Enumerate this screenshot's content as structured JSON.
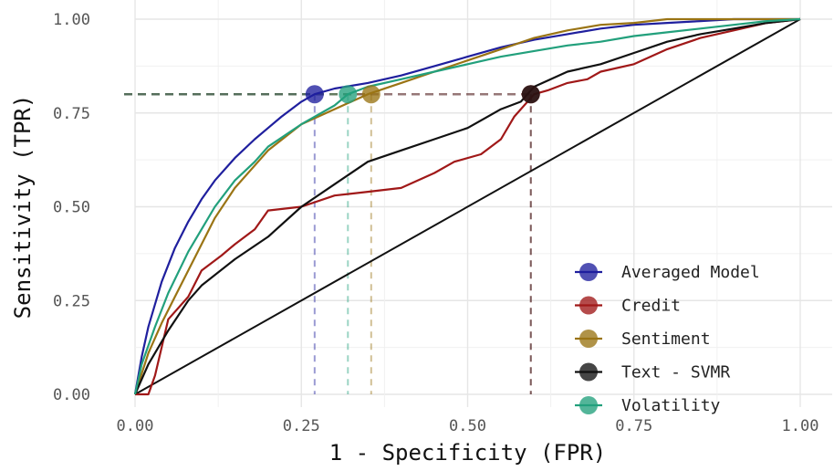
{
  "chart_data": {
    "type": "line",
    "title": "",
    "xlabel": "1 - Specificity (FPR)",
    "ylabel": "Sensitivity (TPR)",
    "xlim": [
      0,
      1
    ],
    "ylim": [
      0,
      1
    ],
    "x_ticks": [
      "0.00",
      "0.25",
      "0.50",
      "0.75",
      "1.00"
    ],
    "y_ticks": [
      "0.00",
      "0.25",
      "0.50",
      "0.75",
      "1.00"
    ],
    "grid": true,
    "legend_position": "bottom-right",
    "reference_line": {
      "x": [
        0,
        1
      ],
      "y": [
        0,
        1
      ],
      "color": "#111111"
    },
    "threshold_tpr": 0.8,
    "series": [
      {
        "name": "Averaged Model",
        "color": "#1f1f9e",
        "x": [
          0,
          0.01,
          0.02,
          0.04,
          0.06,
          0.08,
          0.1,
          0.12,
          0.15,
          0.18,
          0.2,
          0.22,
          0.25,
          0.27,
          0.3,
          0.35,
          0.4,
          0.45,
          0.5,
          0.55,
          0.6,
          0.65,
          0.7,
          0.75,
          0.8,
          0.85,
          0.9,
          0.95,
          1.0
        ],
        "y": [
          0,
          0.1,
          0.18,
          0.3,
          0.39,
          0.46,
          0.52,
          0.57,
          0.63,
          0.68,
          0.71,
          0.74,
          0.78,
          0.8,
          0.815,
          0.83,
          0.85,
          0.875,
          0.9,
          0.925,
          0.945,
          0.96,
          0.975,
          0.985,
          0.99,
          0.995,
          1.0,
          1.0,
          1.0
        ],
        "op_point": {
          "x": 0.27,
          "y": 0.8
        }
      },
      {
        "name": "Credit",
        "color": "#a01818",
        "x": [
          0,
          0.02,
          0.03,
          0.05,
          0.08,
          0.1,
          0.13,
          0.15,
          0.18,
          0.2,
          0.25,
          0.3,
          0.35,
          0.4,
          0.45,
          0.48,
          0.52,
          0.55,
          0.57,
          0.6,
          0.62,
          0.65,
          0.68,
          0.7,
          0.75,
          0.8,
          0.85,
          0.9,
          0.95,
          1.0
        ],
        "y": [
          0,
          0,
          0.05,
          0.2,
          0.26,
          0.33,
          0.37,
          0.4,
          0.44,
          0.49,
          0.5,
          0.53,
          0.54,
          0.55,
          0.59,
          0.62,
          0.64,
          0.68,
          0.74,
          0.8,
          0.81,
          0.83,
          0.84,
          0.86,
          0.88,
          0.92,
          0.95,
          0.97,
          0.99,
          1.0
        ],
        "op_point": {
          "x": 0.595,
          "y": 0.8
        }
      },
      {
        "name": "Sentiment",
        "color": "#9a7414",
        "x": [
          0,
          0.02,
          0.04,
          0.06,
          0.08,
          0.1,
          0.12,
          0.15,
          0.18,
          0.2,
          0.25,
          0.3,
          0.35,
          0.4,
          0.45,
          0.5,
          0.55,
          0.6,
          0.65,
          0.7,
          0.75,
          0.8,
          0.85,
          0.9,
          1.0
        ],
        "y": [
          0,
          0.11,
          0.19,
          0.26,
          0.33,
          0.4,
          0.47,
          0.55,
          0.61,
          0.65,
          0.72,
          0.76,
          0.8,
          0.83,
          0.86,
          0.89,
          0.92,
          0.95,
          0.97,
          0.985,
          0.99,
          1.0,
          1.0,
          1.0,
          1.0
        ],
        "op_point": {
          "x": 0.355,
          "y": 0.8
        }
      },
      {
        "name": "Text - SVMR",
        "color": "#111111",
        "x": [
          0,
          0.02,
          0.05,
          0.08,
          0.1,
          0.15,
          0.2,
          0.25,
          0.3,
          0.35,
          0.4,
          0.45,
          0.5,
          0.55,
          0.58,
          0.6,
          0.65,
          0.7,
          0.75,
          0.8,
          0.85,
          0.9,
          0.95,
          1.0
        ],
        "y": [
          0,
          0.08,
          0.17,
          0.25,
          0.29,
          0.36,
          0.42,
          0.5,
          0.56,
          0.62,
          0.65,
          0.68,
          0.71,
          0.76,
          0.78,
          0.82,
          0.86,
          0.88,
          0.91,
          0.94,
          0.96,
          0.975,
          0.99,
          1.0
        ],
        "op_point": {
          "x": 0.595,
          "y": 0.8
        }
      },
      {
        "name": "Volatility",
        "color": "#22a07c",
        "x": [
          0,
          0.01,
          0.03,
          0.05,
          0.08,
          0.1,
          0.12,
          0.15,
          0.18,
          0.2,
          0.25,
          0.3,
          0.32,
          0.35,
          0.4,
          0.45,
          0.5,
          0.55,
          0.6,
          0.65,
          0.7,
          0.75,
          0.8,
          0.85,
          0.9,
          0.95,
          1.0
        ],
        "y": [
          0,
          0.08,
          0.18,
          0.27,
          0.38,
          0.44,
          0.5,
          0.57,
          0.62,
          0.66,
          0.72,
          0.77,
          0.8,
          0.82,
          0.84,
          0.86,
          0.88,
          0.9,
          0.915,
          0.93,
          0.94,
          0.955,
          0.965,
          0.975,
          0.985,
          0.995,
          1.0
        ],
        "op_point": {
          "x": 0.32,
          "y": 0.8
        }
      }
    ]
  }
}
